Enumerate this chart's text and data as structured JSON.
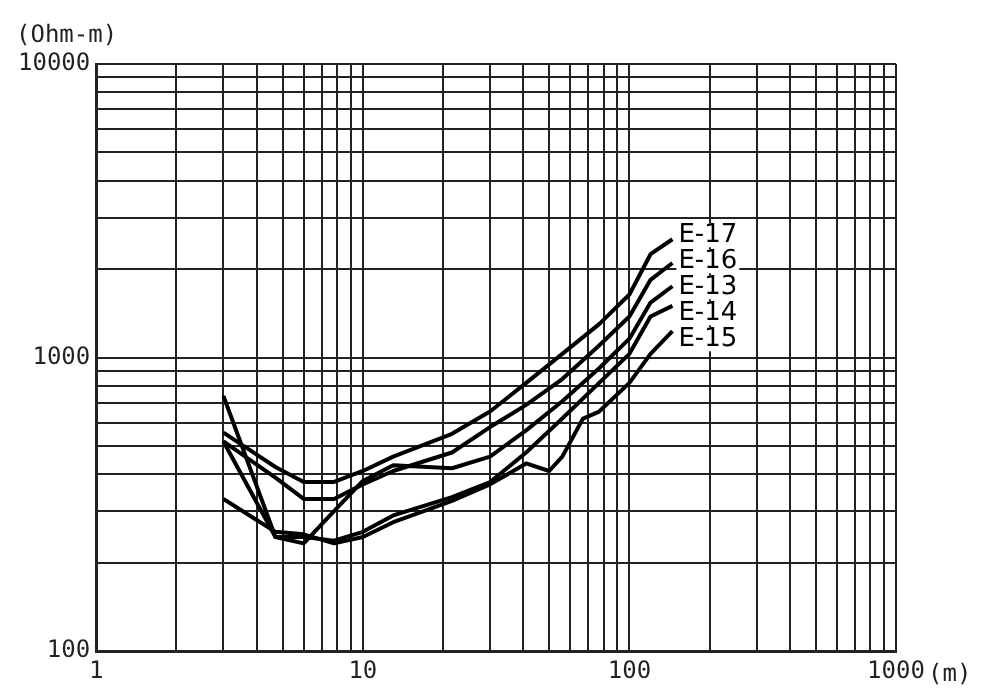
{
  "chart_data": {
    "type": "line",
    "xlabel": "(m)",
    "ylabel": "(Ohm-m)",
    "log": "xy",
    "grid": true,
    "legend": false,
    "marker": "none",
    "line_style": "solid",
    "xlim": [
      1,
      1000
    ],
    "ylim": [
      100,
      10000
    ],
    "xticks": [
      1,
      {
        "value": 2,
        "label": null
      },
      {
        "value": 3,
        "label": null
      },
      {
        "value": 4,
        "label": null
      },
      {
        "value": 5,
        "label": null
      },
      {
        "value": 6,
        "label": null
      },
      {
        "value": 7,
        "label": null
      },
      {
        "value": 8,
        "label": null
      },
      {
        "value": 9,
        "label": null
      },
      10,
      {
        "value": 20,
        "label": null
      },
      {
        "value": 30,
        "label": null
      },
      {
        "value": 40,
        "label": null
      },
      {
        "value": 50,
        "label": null
      },
      {
        "value": 60,
        "label": null
      },
      {
        "value": 70,
        "label": null
      },
      {
        "value": 80,
        "label": null
      },
      {
        "value": 90,
        "label": null
      },
      100,
      {
        "value": 200,
        "label": null
      },
      {
        "value": 300,
        "label": null
      },
      {
        "value": 400,
        "label": null
      },
      {
        "value": 500,
        "label": null
      },
      {
        "value": 600,
        "label": null
      },
      {
        "value": 700,
        "label": null
      },
      {
        "value": 800,
        "label": null
      },
      {
        "value": 900,
        "label": null
      },
      1000
    ],
    "yticks": [
      100,
      {
        "value": 200,
        "label": null
      },
      {
        "value": 300,
        "label": null
      },
      {
        "value": 400,
        "label": null
      },
      {
        "value": 500,
        "label": null
      },
      {
        "value": 600,
        "label": null
      },
      {
        "value": 700,
        "label": null
      },
      {
        "value": 800,
        "label": null
      },
      {
        "value": 900,
        "label": null
      },
      1000,
      {
        "value": 2000,
        "label": null
      },
      {
        "value": 3000,
        "label": null
      },
      {
        "value": 4000,
        "label": null
      },
      {
        "value": 5000,
        "label": null
      },
      {
        "value": 6000,
        "label": null
      },
      {
        "value": 7000,
        "label": null
      },
      {
        "value": 8000,
        "label": null
      },
      {
        "value": 9000,
        "label": null
      },
      10000
    ],
    "series": [
      {
        "name": "E-17",
        "color": "#000000",
        "x": [
          3,
          4.7,
          6,
          7.8,
          10,
          13,
          21.6,
          30,
          41,
          56,
          77,
          100,
          120,
          145
        ],
        "values": [
          555,
          424,
          377,
          377,
          411,
          460,
          550,
          655,
          820,
          1030,
          1300,
          1640,
          2250,
          2530
        ]
      },
      {
        "name": "E-16",
        "color": "#000000",
        "x": [
          3,
          4.7,
          6,
          7.8,
          10,
          13,
          21.6,
          30,
          41,
          56,
          77,
          100,
          120,
          145
        ],
        "values": [
          518,
          390,
          330,
          330,
          370,
          411,
          475,
          580,
          690,
          845,
          1100,
          1380,
          1840,
          2100
        ]
      },
      {
        "name": "E-13",
        "color": "#000000",
        "x": [
          3,
          4.7,
          6,
          7.8,
          10,
          13,
          21.6,
          30,
          41,
          56,
          77,
          100,
          120,
          145
        ],
        "values": [
          740,
          245,
          233,
          300,
          380,
          430,
          420,
          460,
          565,
          710,
          920,
          1160,
          1540,
          1750
        ]
      },
      {
        "name": "E-14",
        "color": "#000000",
        "x": [
          3,
          4.7,
          6,
          7.8,
          10,
          13,
          21.6,
          30,
          41,
          56,
          77,
          100,
          120,
          145
        ],
        "values": [
          518,
          245,
          245,
          238,
          255,
          290,
          335,
          377,
          475,
          620,
          820,
          1030,
          1380,
          1500
        ]
      },
      {
        "name": "E-15",
        "color": "#000000",
        "x": [
          3,
          4.7,
          6,
          7.8,
          10,
          13,
          21.6,
          30,
          41,
          50,
          56,
          67,
          77,
          100,
          120,
          145
        ],
        "values": [
          330,
          255,
          250,
          233,
          245,
          275,
          325,
          370,
          436,
          411,
          460,
          620,
          655,
          820,
          1030,
          1230
        ]
      }
    ]
  }
}
